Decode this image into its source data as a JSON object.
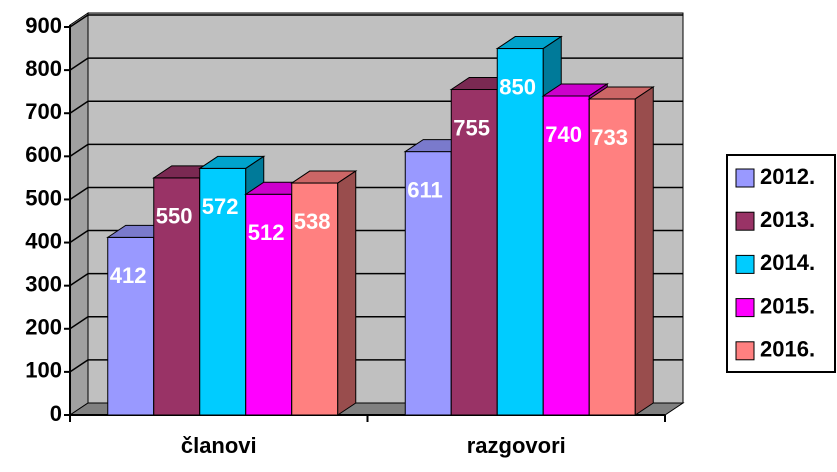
{
  "chart_data": {
    "type": "bar3d",
    "categories": [
      "članovi",
      "razgovori"
    ],
    "series": [
      {
        "name": "2012.",
        "color": "#9999ff",
        "values": [
          412,
          611
        ]
      },
      {
        "name": "2013.",
        "color": "#993366",
        "values": [
          550,
          755
        ]
      },
      {
        "name": "2014.",
        "color": "#00ccff",
        "values": [
          572,
          850
        ]
      },
      {
        "name": "2015.",
        "color": "#ff00ff",
        "values": [
          512,
          740
        ]
      },
      {
        "name": "2016.",
        "color": "#ff8080",
        "values": [
          538,
          733
        ]
      }
    ],
    "ylim": [
      0,
      900
    ],
    "yticks": [
      0,
      100,
      200,
      300,
      400,
      500,
      600,
      700,
      800,
      900
    ],
    "grid": true,
    "legend": "right"
  }
}
